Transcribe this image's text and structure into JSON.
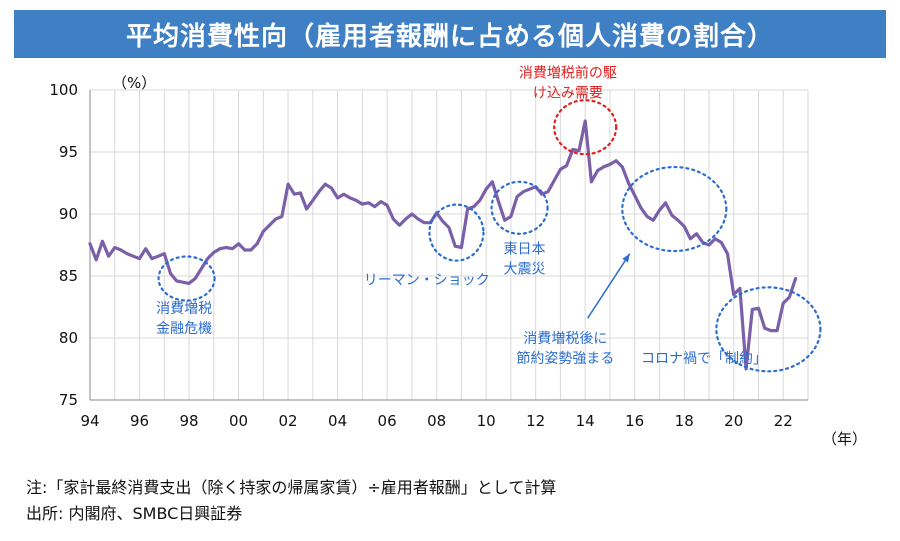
{
  "title": "平均消費性向（雇用者報酬に占める個人消費の割合）",
  "notes": {
    "note": "注:「家計最終消費支出（除く持家の帰属家賃）÷雇用者報酬」として計算",
    "source": "出所: 内閣府、SMBC日興証券"
  },
  "colors": {
    "line": "#7b5fa8",
    "title_bg": "#3f7fc4",
    "annotation": "#2b6dd1",
    "highlight": "#e02020"
  },
  "chart_data": {
    "type": "line",
    "title": "平均消費性向（雇用者報酬に占める個人消費の割合）",
    "ylabel": "（%）",
    "xlabel": "（年）",
    "ylim": [
      75,
      100
    ],
    "xlim": [
      1994,
      2023
    ],
    "y_ticks": [
      "75",
      "80",
      "85",
      "90",
      "95",
      "100"
    ],
    "x_ticks": [
      "94",
      "96",
      "98",
      "00",
      "02",
      "04",
      "06",
      "08",
      "10",
      "12",
      "14",
      "16",
      "18",
      "20",
      "22"
    ],
    "series": [
      {
        "name": "平均消費性向",
        "x": [
          1994.0,
          1994.25,
          1994.5,
          1994.75,
          1995.0,
          1995.25,
          1995.5,
          1995.75,
          1996.0,
          1996.25,
          1996.5,
          1996.75,
          1997.0,
          1997.25,
          1997.5,
          1997.75,
          1998.0,
          1998.25,
          1998.5,
          1998.75,
          1999.0,
          1999.25,
          1999.5,
          1999.75,
          2000.0,
          2000.25,
          2000.5,
          2000.75,
          2001.0,
          2001.25,
          2001.5,
          2001.75,
          2002.0,
          2002.25,
          2002.5,
          2002.75,
          2003.0,
          2003.25,
          2003.5,
          2003.75,
          2004.0,
          2004.25,
          2004.5,
          2004.75,
          2005.0,
          2005.25,
          2005.5,
          2005.75,
          2006.0,
          2006.25,
          2006.5,
          2006.75,
          2007.0,
          2007.25,
          2007.5,
          2007.75,
          2008.0,
          2008.25,
          2008.5,
          2008.75,
          2009.0,
          2009.25,
          2009.5,
          2009.75,
          2010.0,
          2010.25,
          2010.5,
          2010.75,
          2011.0,
          2011.25,
          2011.5,
          2011.75,
          2012.0,
          2012.25,
          2012.5,
          2012.75,
          2013.0,
          2013.25,
          2013.5,
          2013.75,
          2014.0,
          2014.25,
          2014.5,
          2014.75,
          2015.0,
          2015.25,
          2015.5,
          2015.75,
          2016.0,
          2016.25,
          2016.5,
          2016.75,
          2017.0,
          2017.25,
          2017.5,
          2017.75,
          2018.0,
          2018.25,
          2018.5,
          2018.75,
          2019.0,
          2019.25,
          2019.5,
          2019.75,
          2020.0,
          2020.25,
          2020.5,
          2020.75,
          2021.0,
          2021.25,
          2021.5,
          2021.75,
          2022.0,
          2022.25,
          2022.5
        ],
        "values": [
          87.6,
          86.3,
          87.8,
          86.6,
          87.3,
          87.1,
          86.8,
          86.6,
          86.4,
          87.2,
          86.4,
          86.6,
          86.8,
          85.2,
          84.6,
          84.5,
          84.4,
          84.8,
          85.6,
          86.4,
          86.9,
          87.2,
          87.3,
          87.2,
          87.6,
          87.1,
          87.1,
          87.6,
          88.6,
          89.1,
          89.6,
          89.8,
          92.4,
          91.6,
          91.7,
          90.4,
          91.1,
          91.8,
          92.4,
          92.1,
          91.3,
          91.6,
          91.3,
          91.1,
          90.8,
          90.9,
          90.6,
          91.0,
          90.7,
          89.6,
          89.1,
          89.6,
          90.0,
          89.6,
          89.3,
          89.3,
          90.1,
          89.4,
          88.9,
          87.4,
          87.3,
          90.4,
          90.6,
          91.1,
          92.0,
          92.6,
          91.0,
          89.5,
          89.8,
          91.4,
          91.8,
          92.0,
          92.2,
          91.6,
          91.8,
          92.7,
          93.6,
          93.9,
          95.2,
          95.1,
          97.5,
          92.6,
          93.5,
          93.8,
          94.0,
          94.3,
          93.8,
          92.5,
          91.5,
          90.5,
          89.8,
          89.5,
          90.3,
          90.9,
          89.9,
          89.5,
          89.0,
          88.0,
          88.4,
          87.7,
          87.5,
          88.0,
          87.7,
          86.8,
          83.5,
          84.0,
          77.5,
          82.3,
          82.4,
          80.8,
          80.6,
          80.6,
          82.8,
          83.3,
          84.8
        ]
      }
    ],
    "annotations": [
      {
        "id": "ann-1998",
        "text": [
          "消費増税",
          "金融危機"
        ]
      },
      {
        "id": "ann-lehman",
        "text": [
          "リーマン・ショック"
        ]
      },
      {
        "id": "ann-quake",
        "text": [
          "東日本",
          "大震災"
        ]
      },
      {
        "id": "ann-prehike",
        "text": [
          "消費増税前の駆",
          "け込み需要"
        ]
      },
      {
        "id": "ann-posthike",
        "text": [
          "消費増税後に",
          "節約姿勢強まる"
        ]
      },
      {
        "id": "ann-covid",
        "text": [
          "コロナ禍で「制約」"
        ]
      }
    ]
  }
}
